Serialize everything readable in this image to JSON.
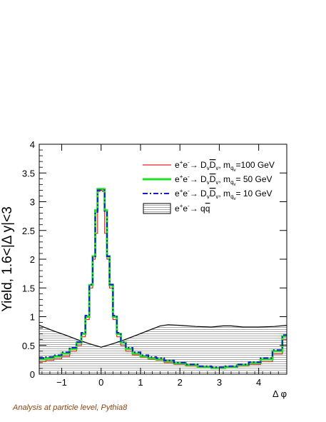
{
  "chart_data": {
    "type": "line",
    "title": "",
    "xlabel": "Δ φ",
    "ylabel": "Yield, 1.6<|Δ y|<3",
    "xlim": [
      -1.5708,
      4.7124
    ],
    "ylim": [
      0,
      4
    ],
    "xticks": [
      -1,
      0,
      1,
      2,
      3,
      4
    ],
    "yticks": [
      0,
      0.5,
      1,
      1.5,
      2,
      2.5,
      3,
      3.5,
      4
    ],
    "legend_position": "top-right",
    "series": [
      {
        "name": "e+e- → DvDv, mqv=100 GeV",
        "style": "solid",
        "color": "#e8201e",
        "x": [
          -1.5,
          -1.3,
          -1.1,
          -0.9,
          -0.7,
          -0.55,
          -0.45,
          -0.35,
          -0.25,
          -0.18,
          -0.12,
          -0.06,
          0.0,
          0.06,
          0.12,
          0.18,
          0.25,
          0.35,
          0.45,
          0.55,
          0.7,
          0.9,
          1.1,
          1.3,
          1.5,
          1.7,
          2.0,
          2.3,
          2.6,
          3.0,
          3.3,
          3.6,
          3.9,
          4.2,
          4.5,
          4.7
        ],
        "y": [
          0.22,
          0.24,
          0.27,
          0.31,
          0.4,
          0.5,
          0.65,
          0.95,
          1.5,
          2.0,
          2.45,
          3.18,
          3.2,
          3.18,
          2.45,
          2.0,
          1.5,
          0.95,
          0.65,
          0.5,
          0.4,
          0.33,
          0.29,
          0.26,
          0.24,
          0.2,
          0.17,
          0.14,
          0.12,
          0.1,
          0.12,
          0.14,
          0.17,
          0.22,
          0.35,
          0.6
        ]
      },
      {
        "name": "e+e- → DvDv, mqv= 50 GeV",
        "style": "solid",
        "color": "#22e022",
        "x": [
          -1.5,
          -1.3,
          -1.1,
          -0.9,
          -0.7,
          -0.55,
          -0.45,
          -0.35,
          -0.25,
          -0.18,
          -0.12,
          -0.06,
          0.0,
          0.06,
          0.12,
          0.18,
          0.25,
          0.35,
          0.45,
          0.55,
          0.7,
          0.9,
          1.1,
          1.3,
          1.5,
          1.7,
          2.0,
          2.3,
          2.6,
          3.0,
          3.3,
          3.6,
          3.9,
          4.2,
          4.5,
          4.7
        ],
        "y": [
          0.26,
          0.28,
          0.31,
          0.36,
          0.44,
          0.55,
          0.7,
          1.0,
          1.55,
          2.05,
          2.85,
          3.22,
          3.22,
          3.22,
          2.85,
          2.05,
          1.55,
          1.0,
          0.7,
          0.55,
          0.44,
          0.36,
          0.31,
          0.28,
          0.26,
          0.23,
          0.19,
          0.16,
          0.13,
          0.11,
          0.13,
          0.16,
          0.2,
          0.26,
          0.4,
          0.66
        ]
      },
      {
        "name": "e+e- → DvDv, mqv= 10 GeV",
        "style": "dash-dot",
        "color": "#1a1ad0",
        "x": [
          -1.5,
          -1.3,
          -1.1,
          -0.9,
          -0.7,
          -0.55,
          -0.45,
          -0.35,
          -0.25,
          -0.18,
          -0.12,
          -0.06,
          0.0,
          0.06,
          0.12,
          0.18,
          0.25,
          0.35,
          0.45,
          0.55,
          0.7,
          0.9,
          1.1,
          1.3,
          1.5,
          1.7,
          2.0,
          2.3,
          2.6,
          3.0,
          3.3,
          3.6,
          3.9,
          4.2,
          4.5,
          4.7
        ],
        "y": [
          0.28,
          0.3,
          0.33,
          0.38,
          0.46,
          0.56,
          0.72,
          1.02,
          1.56,
          2.05,
          2.82,
          3.2,
          3.2,
          3.2,
          2.82,
          2.05,
          1.56,
          1.02,
          0.72,
          0.56,
          0.46,
          0.38,
          0.33,
          0.3,
          0.28,
          0.24,
          0.2,
          0.17,
          0.14,
          0.12,
          0.14,
          0.17,
          0.21,
          0.28,
          0.42,
          0.68
        ]
      },
      {
        "name": "e+e- → qq",
        "style": "hatched-fill",
        "color": "#000000",
        "x": [
          -1.5708,
          -1.2,
          -0.9,
          -0.6,
          -0.3,
          0.0,
          0.3,
          0.6,
          0.9,
          1.2,
          1.5,
          1.7,
          2.0,
          2.4,
          2.8,
          3.1,
          3.3,
          3.6,
          4.0,
          4.4,
          4.7124
        ],
        "y": [
          0.85,
          0.75,
          0.68,
          0.6,
          0.53,
          0.47,
          0.53,
          0.6,
          0.68,
          0.76,
          0.84,
          0.86,
          0.85,
          0.83,
          0.82,
          0.84,
          0.84,
          0.82,
          0.82,
          0.83,
          0.85
        ]
      }
    ]
  },
  "legend": {
    "entry1": {
      "prefix": "e",
      "sup1": "+",
      "mid": "e",
      "sup2": "-",
      "arrow": "→ D",
      "sub1": "v",
      "bar": "D",
      "sub2": "v",
      "mass": ", m",
      "massub": "q",
      "masssubsub": "v",
      "value": "=100 GeV"
    },
    "entry2": {
      "prefix": "e",
      "sup1": "+",
      "mid": "e",
      "sup2": "-",
      "arrow": "→ D",
      "sub1": "v",
      "bar": "D",
      "sub2": "v",
      "mass": ", m",
      "massub": "q",
      "masssubsub": "v",
      "value": "= 50 GeV"
    },
    "entry3": {
      "prefix": "e",
      "sup1": "+",
      "mid": "e",
      "sup2": "-",
      "arrow": "→ D",
      "sub1": "v",
      "bar": "D",
      "sub2": "v",
      "mass": ", m",
      "massub": "q",
      "masssubsub": "v",
      "value": "= 10 GeV"
    },
    "entry4": {
      "prefix": "e",
      "sup1": "+",
      "mid": "e",
      "sup2": "-",
      "arrow": "→ q",
      "bar": "q"
    }
  },
  "footnote": "Analysis at particle level, Pythia8"
}
